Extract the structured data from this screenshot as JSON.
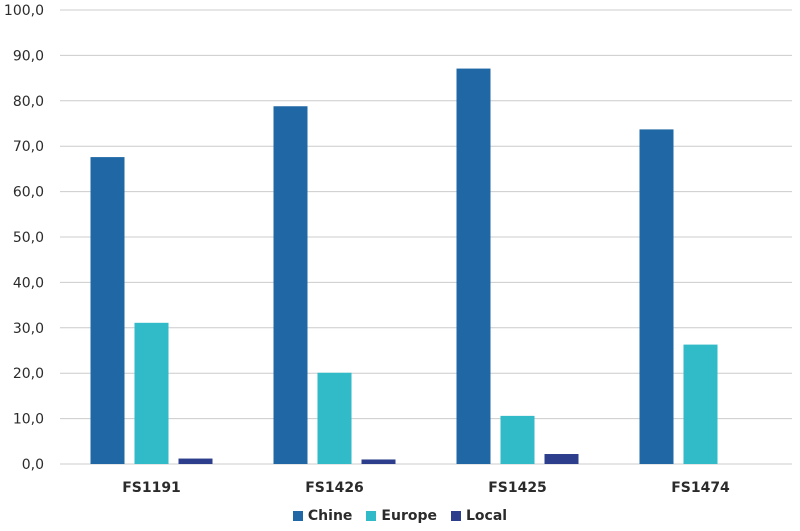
{
  "chart_data": {
    "type": "bar",
    "categories": [
      "FS1191",
      "FS1426",
      "FS1425",
      "FS1474"
    ],
    "series": [
      {
        "name": "Chine",
        "color": "#1f68a5",
        "values": [
          67.6,
          78.8,
          87.1,
          73.7
        ]
      },
      {
        "name": "Europe",
        "color": "#31bac7",
        "values": [
          31.1,
          20.1,
          10.6,
          26.3
        ]
      },
      {
        "name": "Local",
        "color": "#2d3f8c",
        "values": [
          1.2,
          1.0,
          2.2,
          0.0
        ]
      }
    ],
    "ylim": [
      0,
      100
    ],
    "yticks": [
      "0,0",
      "10,0",
      "20,0",
      "30,0",
      "40,0",
      "50,0",
      "60,0",
      "70,0",
      "80,0",
      "90,0",
      "100,0"
    ],
    "grid": true,
    "legend_position": "bottom"
  }
}
